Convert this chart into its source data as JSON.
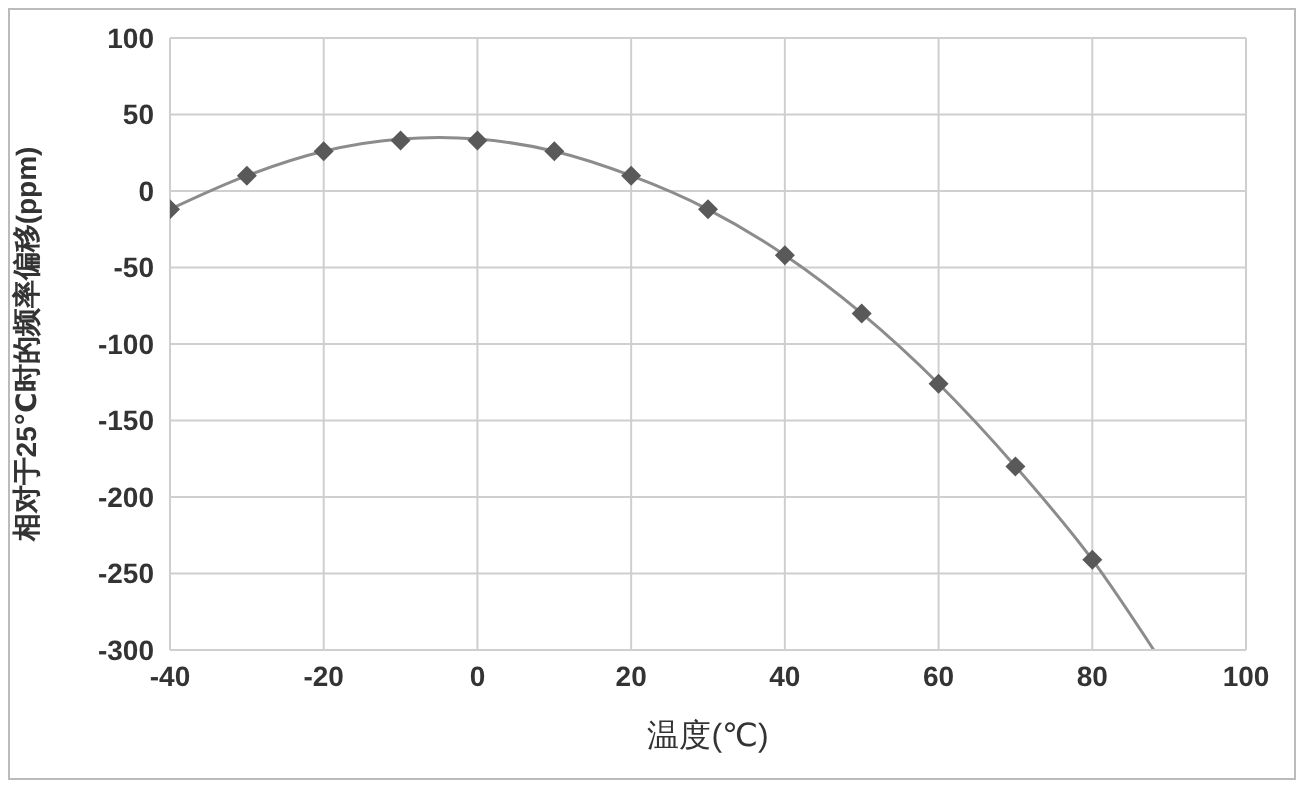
{
  "chart_data": {
    "type": "scatter",
    "xlabel": "温度(℃)",
    "ylabel": "相对于25℃时的频率偏移(ppm)",
    "xlim": [
      -40,
      100
    ],
    "xticks": [
      -40,
      -20,
      0,
      20,
      40,
      60,
      80,
      100
    ],
    "ylim": [
      -300,
      100
    ],
    "yticks": [
      -300,
      -250,
      -200,
      -150,
      -100,
      -50,
      0,
      50,
      100
    ],
    "grid": true,
    "series": [
      {
        "type": "line",
        "color": "#8c8c8c",
        "marker": "none",
        "x": [
          -40,
          -30,
          -20,
          -10,
          -5,
          0,
          10,
          20,
          30,
          40,
          50,
          60,
          70,
          80,
          88
        ],
        "values": [
          -12,
          10,
          26,
          34,
          35,
          34,
          26,
          10,
          -12,
          -42,
          -80,
          -126,
          -180,
          -241,
          -300
        ]
      },
      {
        "color": "#595959",
        "marker": "diamond",
        "x": [
          -40,
          -30,
          -20,
          -10,
          0,
          10,
          20,
          30,
          40,
          50,
          60,
          70,
          80
        ],
        "values": [
          -12,
          10,
          26,
          33,
          33,
          26,
          10,
          -12,
          -42,
          -80,
          -126,
          -180,
          -241
        ]
      }
    ]
  }
}
